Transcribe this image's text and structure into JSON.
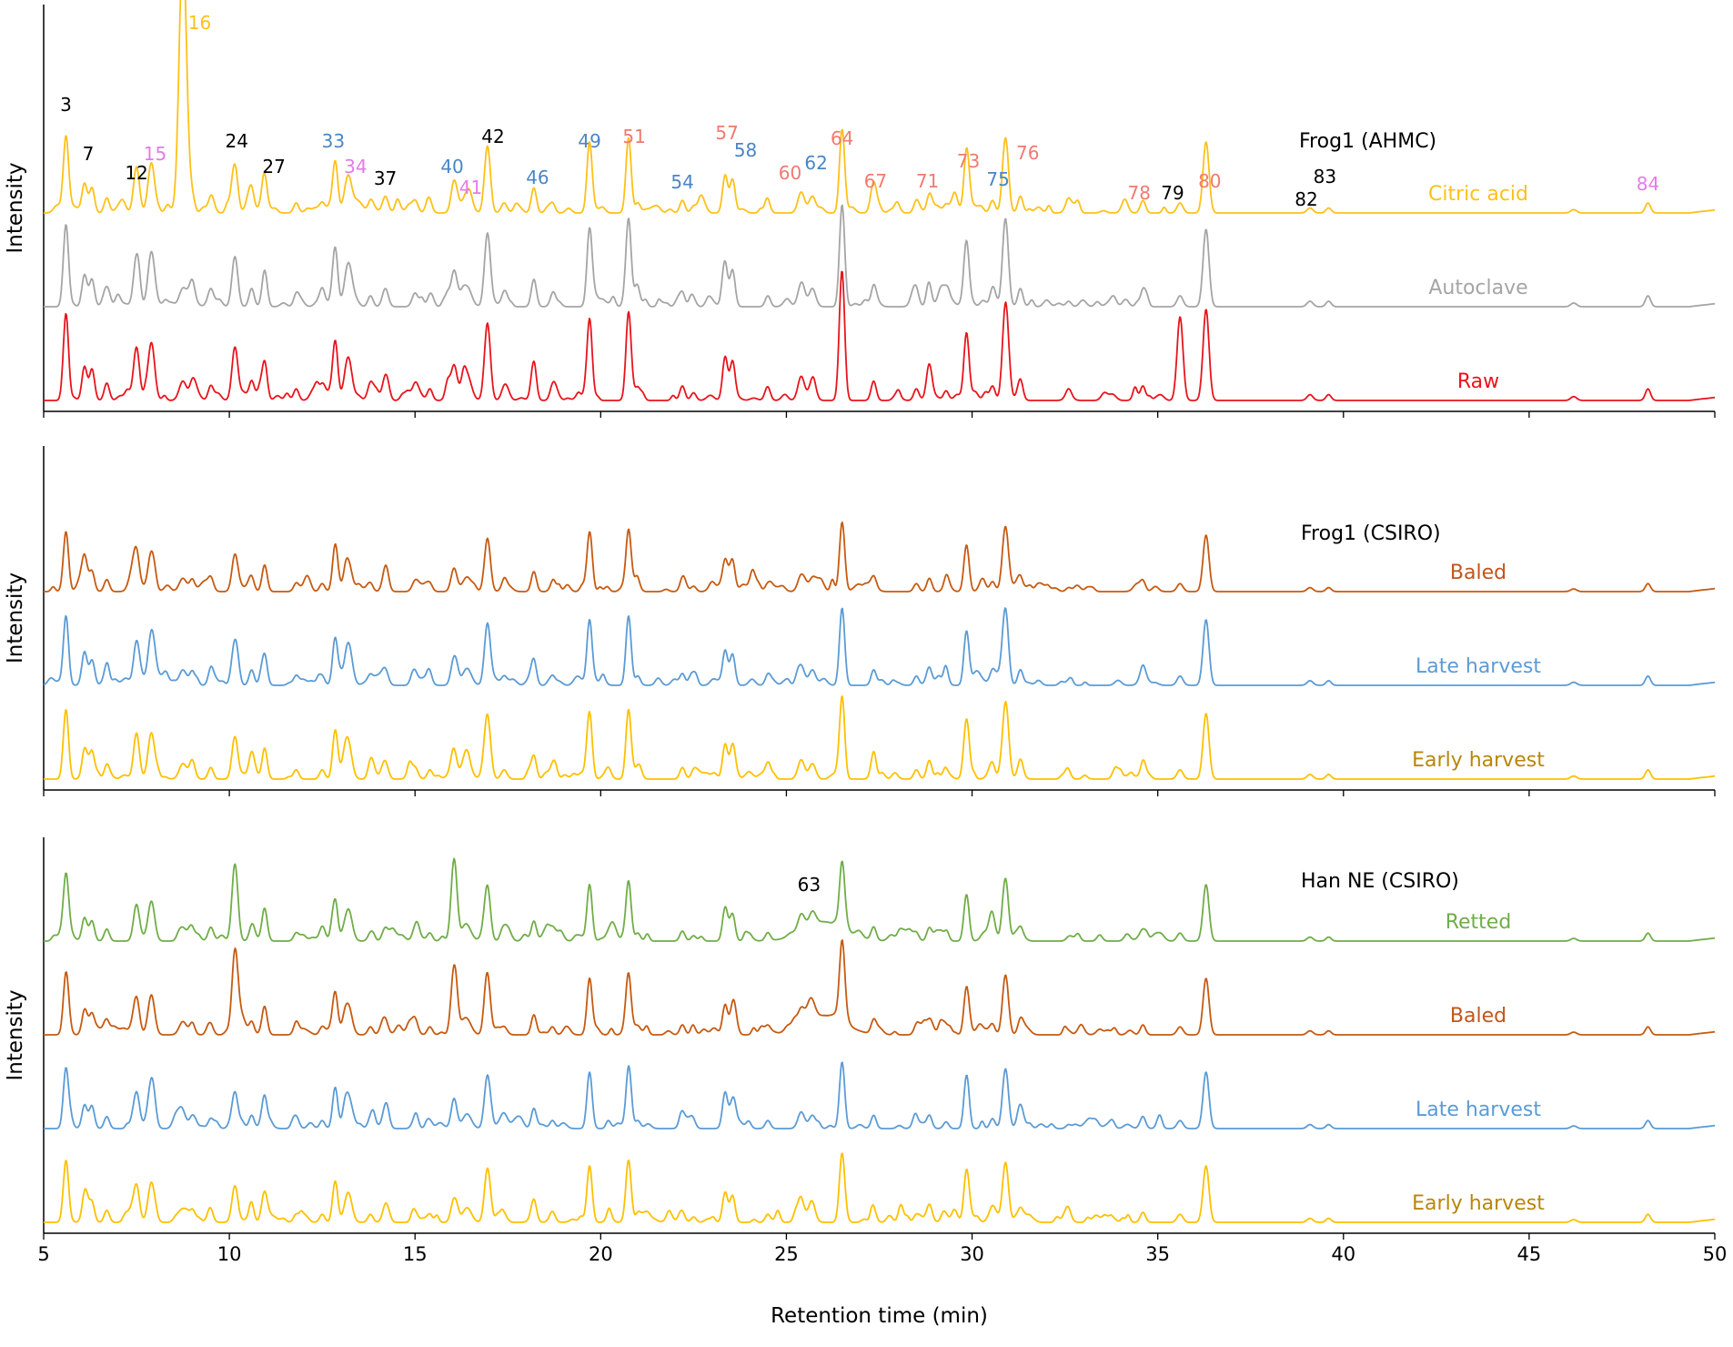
{
  "chart_data": {
    "type": "line",
    "xlabel": "Retention time (min)",
    "ylabel": "Intensity",
    "xlim": [
      5,
      50
    ],
    "xticks": [
      "5",
      "10",
      "15",
      "20",
      "25",
      "30",
      "35",
      "40",
      "45",
      "50"
    ],
    "colors": {
      "citric": "#FFC018",
      "autoclave": "#A5A5A5",
      "raw": "#E8141C",
      "baled": "#C65A11",
      "late": "#5B9BD5",
      "early": "#FFC000",
      "retted": "#70AD47",
      "black": "#000000",
      "salmon": "#F07A70",
      "blue": "#4A86C5",
      "pink": "#E57BE8",
      "baled_label": "#C0561C",
      "early_label": "#B8860B"
    },
    "panels": [
      {
        "title": "Frog1 (AHMC)",
        "series": [
          {
            "name": "Citric acid",
            "color_key": "citric",
            "label_color_key": "citric",
            "baseline": 0.2,
            "peak_scale": 0.78,
            "special": {
              "16": 2.45
            }
          },
          {
            "name": "Autoclave",
            "color_key": "autoclave",
            "label_color_key": "autoclave",
            "baseline": 0.09,
            "peak_scale": 0.85,
            "special": {
              "64": 0.95
            }
          },
          {
            "name": "Raw",
            "color_key": "raw",
            "label_color_key": "raw",
            "baseline": 0.0,
            "peak_scale": 0.9,
            "special": {
              "64": 1.15,
              "79": 0.78,
              "80": 0.85
            }
          }
        ]
      },
      {
        "title": "Frog1 (CSIRO)",
        "series": [
          {
            "name": "Baled",
            "color_key": "baled",
            "label_color_key": "baled_label",
            "baseline": 0.2,
            "peak_scale": 0.62,
            "special": {}
          },
          {
            "name": "Late harvest",
            "color_key": "late",
            "label_color_key": "late",
            "baseline": 0.09,
            "peak_scale": 0.72,
            "special": {}
          },
          {
            "name": "Early harvest",
            "color_key": "early",
            "label_color_key": "early_label",
            "baseline": 0.0,
            "peak_scale": 0.72,
            "special": {}
          }
        ]
      },
      {
        "title": "Han NE (CSIRO)",
        "series": [
          {
            "name": "Retted",
            "color_key": "retted",
            "label_color_key": "retted",
            "baseline": 0.3,
            "peak_scale": 0.62,
            "special": {
              "24": 0.72,
              "40": 0.72,
              "64": 0.62
            }
          },
          {
            "name": "Baled",
            "color_key": "baled",
            "label_color_key": "baled_label",
            "baseline": 0.2,
            "peak_scale": 0.62,
            "special": {
              "24": 0.75,
              "40": 0.62
            }
          },
          {
            "name": "Late harvest",
            "color_key": "late",
            "label_color_key": "late",
            "baseline": 0.1,
            "peak_scale": 0.62,
            "special": {}
          },
          {
            "name": "Early harvest",
            "color_key": "early",
            "label_color_key": "early_label",
            "baseline": 0.0,
            "peak_scale": 0.62,
            "special": {}
          }
        ]
      }
    ],
    "peaks": [
      {
        "label": "3",
        "x": 5.6,
        "h": 0.9,
        "w": 0.07
      },
      {
        "label": "7",
        "x": 6.1,
        "h": 0.35,
        "w": 0.07
      },
      {
        "label": "",
        "x": 6.3,
        "h": 0.3,
        "w": 0.07
      },
      {
        "label": "",
        "x": 6.7,
        "h": 0.18,
        "w": 0.07
      },
      {
        "label": "12",
        "x": 7.5,
        "h": 0.55,
        "w": 0.08
      },
      {
        "label": "15",
        "x": 7.9,
        "h": 0.6,
        "w": 0.09
      },
      {
        "label": "16",
        "x": 8.75,
        "h": 0.2,
        "w": 0.1
      },
      {
        "label": "",
        "x": 9.0,
        "h": 0.18,
        "w": 0.07
      },
      {
        "label": "",
        "x": 9.5,
        "h": 0.15,
        "w": 0.07
      },
      {
        "label": "24",
        "x": 10.15,
        "h": 0.55,
        "w": 0.08
      },
      {
        "label": "",
        "x": 10.6,
        "h": 0.2,
        "w": 0.07
      },
      {
        "label": "27",
        "x": 10.95,
        "h": 0.4,
        "w": 0.07
      },
      {
        "label": "",
        "x": 11.8,
        "h": 0.12,
        "w": 0.07
      },
      {
        "label": "",
        "x": 12.5,
        "h": 0.12,
        "w": 0.07
      },
      {
        "label": "33",
        "x": 12.85,
        "h": 0.62,
        "w": 0.07
      },
      {
        "label": "34",
        "x": 13.2,
        "h": 0.45,
        "w": 0.1
      },
      {
        "label": "",
        "x": 13.8,
        "h": 0.12,
        "w": 0.07
      },
      {
        "label": "37",
        "x": 14.2,
        "h": 0.2,
        "w": 0.08
      },
      {
        "label": "",
        "x": 15.0,
        "h": 0.15,
        "w": 0.08
      },
      {
        "label": "",
        "x": 15.4,
        "h": 0.12,
        "w": 0.07
      },
      {
        "label": "40",
        "x": 16.05,
        "h": 0.35,
        "w": 0.08
      },
      {
        "label": "41",
        "x": 16.4,
        "h": 0.22,
        "w": 0.12
      },
      {
        "label": "42",
        "x": 16.95,
        "h": 0.8,
        "w": 0.08
      },
      {
        "label": "",
        "x": 17.4,
        "h": 0.12,
        "w": 0.08
      },
      {
        "label": "46",
        "x": 18.2,
        "h": 0.3,
        "w": 0.07
      },
      {
        "label": "",
        "x": 18.7,
        "h": 0.12,
        "w": 0.07
      },
      {
        "label": "49",
        "x": 19.7,
        "h": 0.85,
        "w": 0.07
      },
      {
        "label": "51",
        "x": 20.75,
        "h": 0.9,
        "w": 0.07
      },
      {
        "label": "",
        "x": 21.0,
        "h": 0.12,
        "w": 0.07
      },
      {
        "label": "54",
        "x": 22.2,
        "h": 0.15,
        "w": 0.07
      },
      {
        "label": "",
        "x": 22.5,
        "h": 0.08,
        "w": 0.07
      },
      {
        "label": "57",
        "x": 23.35,
        "h": 0.45,
        "w": 0.07
      },
      {
        "label": "58",
        "x": 23.55,
        "h": 0.4,
        "w": 0.07
      },
      {
        "label": "",
        "x": 24.5,
        "h": 0.12,
        "w": 0.07
      },
      {
        "label": "60",
        "x": 25.4,
        "h": 0.25,
        "w": 0.09
      },
      {
        "label": "62",
        "x": 25.7,
        "h": 0.2,
        "w": 0.09
      },
      {
        "label": "64",
        "x": 26.5,
        "h": 1.0,
        "w": 0.07
      },
      {
        "label": "67",
        "x": 27.35,
        "h": 0.2,
        "w": 0.07
      },
      {
        "label": "",
        "x": 28.5,
        "h": 0.12,
        "w": 0.07
      },
      {
        "label": "71",
        "x": 28.85,
        "h": 0.2,
        "w": 0.07
      },
      {
        "label": "",
        "x": 29.3,
        "h": 0.1,
        "w": 0.07
      },
      {
        "label": "73",
        "x": 29.85,
        "h": 0.7,
        "w": 0.07
      },
      {
        "label": "",
        "x": 30.55,
        "h": 0.15,
        "w": 0.07
      },
      {
        "label": "75",
        "x": 30.9,
        "h": 0.9,
        "w": 0.08
      },
      {
        "label": "76",
        "x": 31.3,
        "h": 0.2,
        "w": 0.07
      },
      {
        "label": "",
        "x": 32.6,
        "h": 0.06,
        "w": 0.07
      },
      {
        "label": "78",
        "x": 34.6,
        "h": 0.15,
        "w": 0.07
      },
      {
        "label": "79",
        "x": 35.6,
        "h": 0.12,
        "w": 0.08
      },
      {
        "label": "80",
        "x": 36.3,
        "h": 0.85,
        "w": 0.08
      },
      {
        "label": "82",
        "x": 39.1,
        "h": 0.06,
        "w": 0.08
      },
      {
        "label": "83",
        "x": 39.6,
        "h": 0.06,
        "w": 0.07
      },
      {
        "label": "",
        "x": 46.2,
        "h": 0.04,
        "w": 0.08
      },
      {
        "label": "84",
        "x": 48.2,
        "h": 0.12,
        "w": 0.07
      }
    ],
    "annotations": [
      {
        "text": "3",
        "x": 5.6,
        "color_key": "black"
      },
      {
        "text": "7",
        "x": 6.2,
        "color_key": "black"
      },
      {
        "text": "12",
        "x": 7.5,
        "color_key": "black"
      },
      {
        "text": "15",
        "x": 8.0,
        "color_key": "pink"
      },
      {
        "text": "16",
        "x": 9.2,
        "color_key": "citric"
      },
      {
        "text": "24",
        "x": 10.2,
        "color_key": "black"
      },
      {
        "text": "27",
        "x": 11.2,
        "color_key": "black"
      },
      {
        "text": "33",
        "x": 12.8,
        "color_key": "blue"
      },
      {
        "text": "34",
        "x": 13.4,
        "color_key": "pink"
      },
      {
        "text": "37",
        "x": 14.2,
        "color_key": "black"
      },
      {
        "text": "40",
        "x": 16.0,
        "color_key": "blue"
      },
      {
        "text": "41",
        "x": 16.5,
        "color_key": "pink"
      },
      {
        "text": "42",
        "x": 17.1,
        "color_key": "black"
      },
      {
        "text": "46",
        "x": 18.3,
        "color_key": "blue"
      },
      {
        "text": "49",
        "x": 19.7,
        "color_key": "blue"
      },
      {
        "text": "51",
        "x": 20.9,
        "color_key": "salmon"
      },
      {
        "text": "54",
        "x": 22.2,
        "color_key": "blue"
      },
      {
        "text": "57",
        "x": 23.4,
        "color_key": "salmon"
      },
      {
        "text": "58",
        "x": 23.9,
        "color_key": "blue"
      },
      {
        "text": "60",
        "x": 25.1,
        "color_key": "salmon"
      },
      {
        "text": "62",
        "x": 25.8,
        "color_key": "blue"
      },
      {
        "text": "64",
        "x": 26.5,
        "color_key": "salmon"
      },
      {
        "text": "67",
        "x": 27.4,
        "color_key": "salmon"
      },
      {
        "text": "71",
        "x": 28.8,
        "color_key": "salmon"
      },
      {
        "text": "73",
        "x": 29.9,
        "color_key": "salmon"
      },
      {
        "text": "75",
        "x": 30.7,
        "color_key": "blue"
      },
      {
        "text": "76",
        "x": 31.5,
        "color_key": "salmon"
      },
      {
        "text": "78",
        "x": 34.5,
        "color_key": "salmon"
      },
      {
        "text": "79",
        "x": 35.4,
        "color_key": "black"
      },
      {
        "text": "80",
        "x": 36.4,
        "color_key": "salmon"
      },
      {
        "text": "82",
        "x": 39.0,
        "color_key": "black"
      },
      {
        "text": "83",
        "x": 39.5,
        "color_key": "black"
      },
      {
        "text": "84",
        "x": 48.2,
        "color_key": "pink"
      }
    ],
    "extra_annotations": [
      {
        "text": "63",
        "x": 26.1,
        "panel": 2,
        "color_key": "black"
      }
    ]
  }
}
